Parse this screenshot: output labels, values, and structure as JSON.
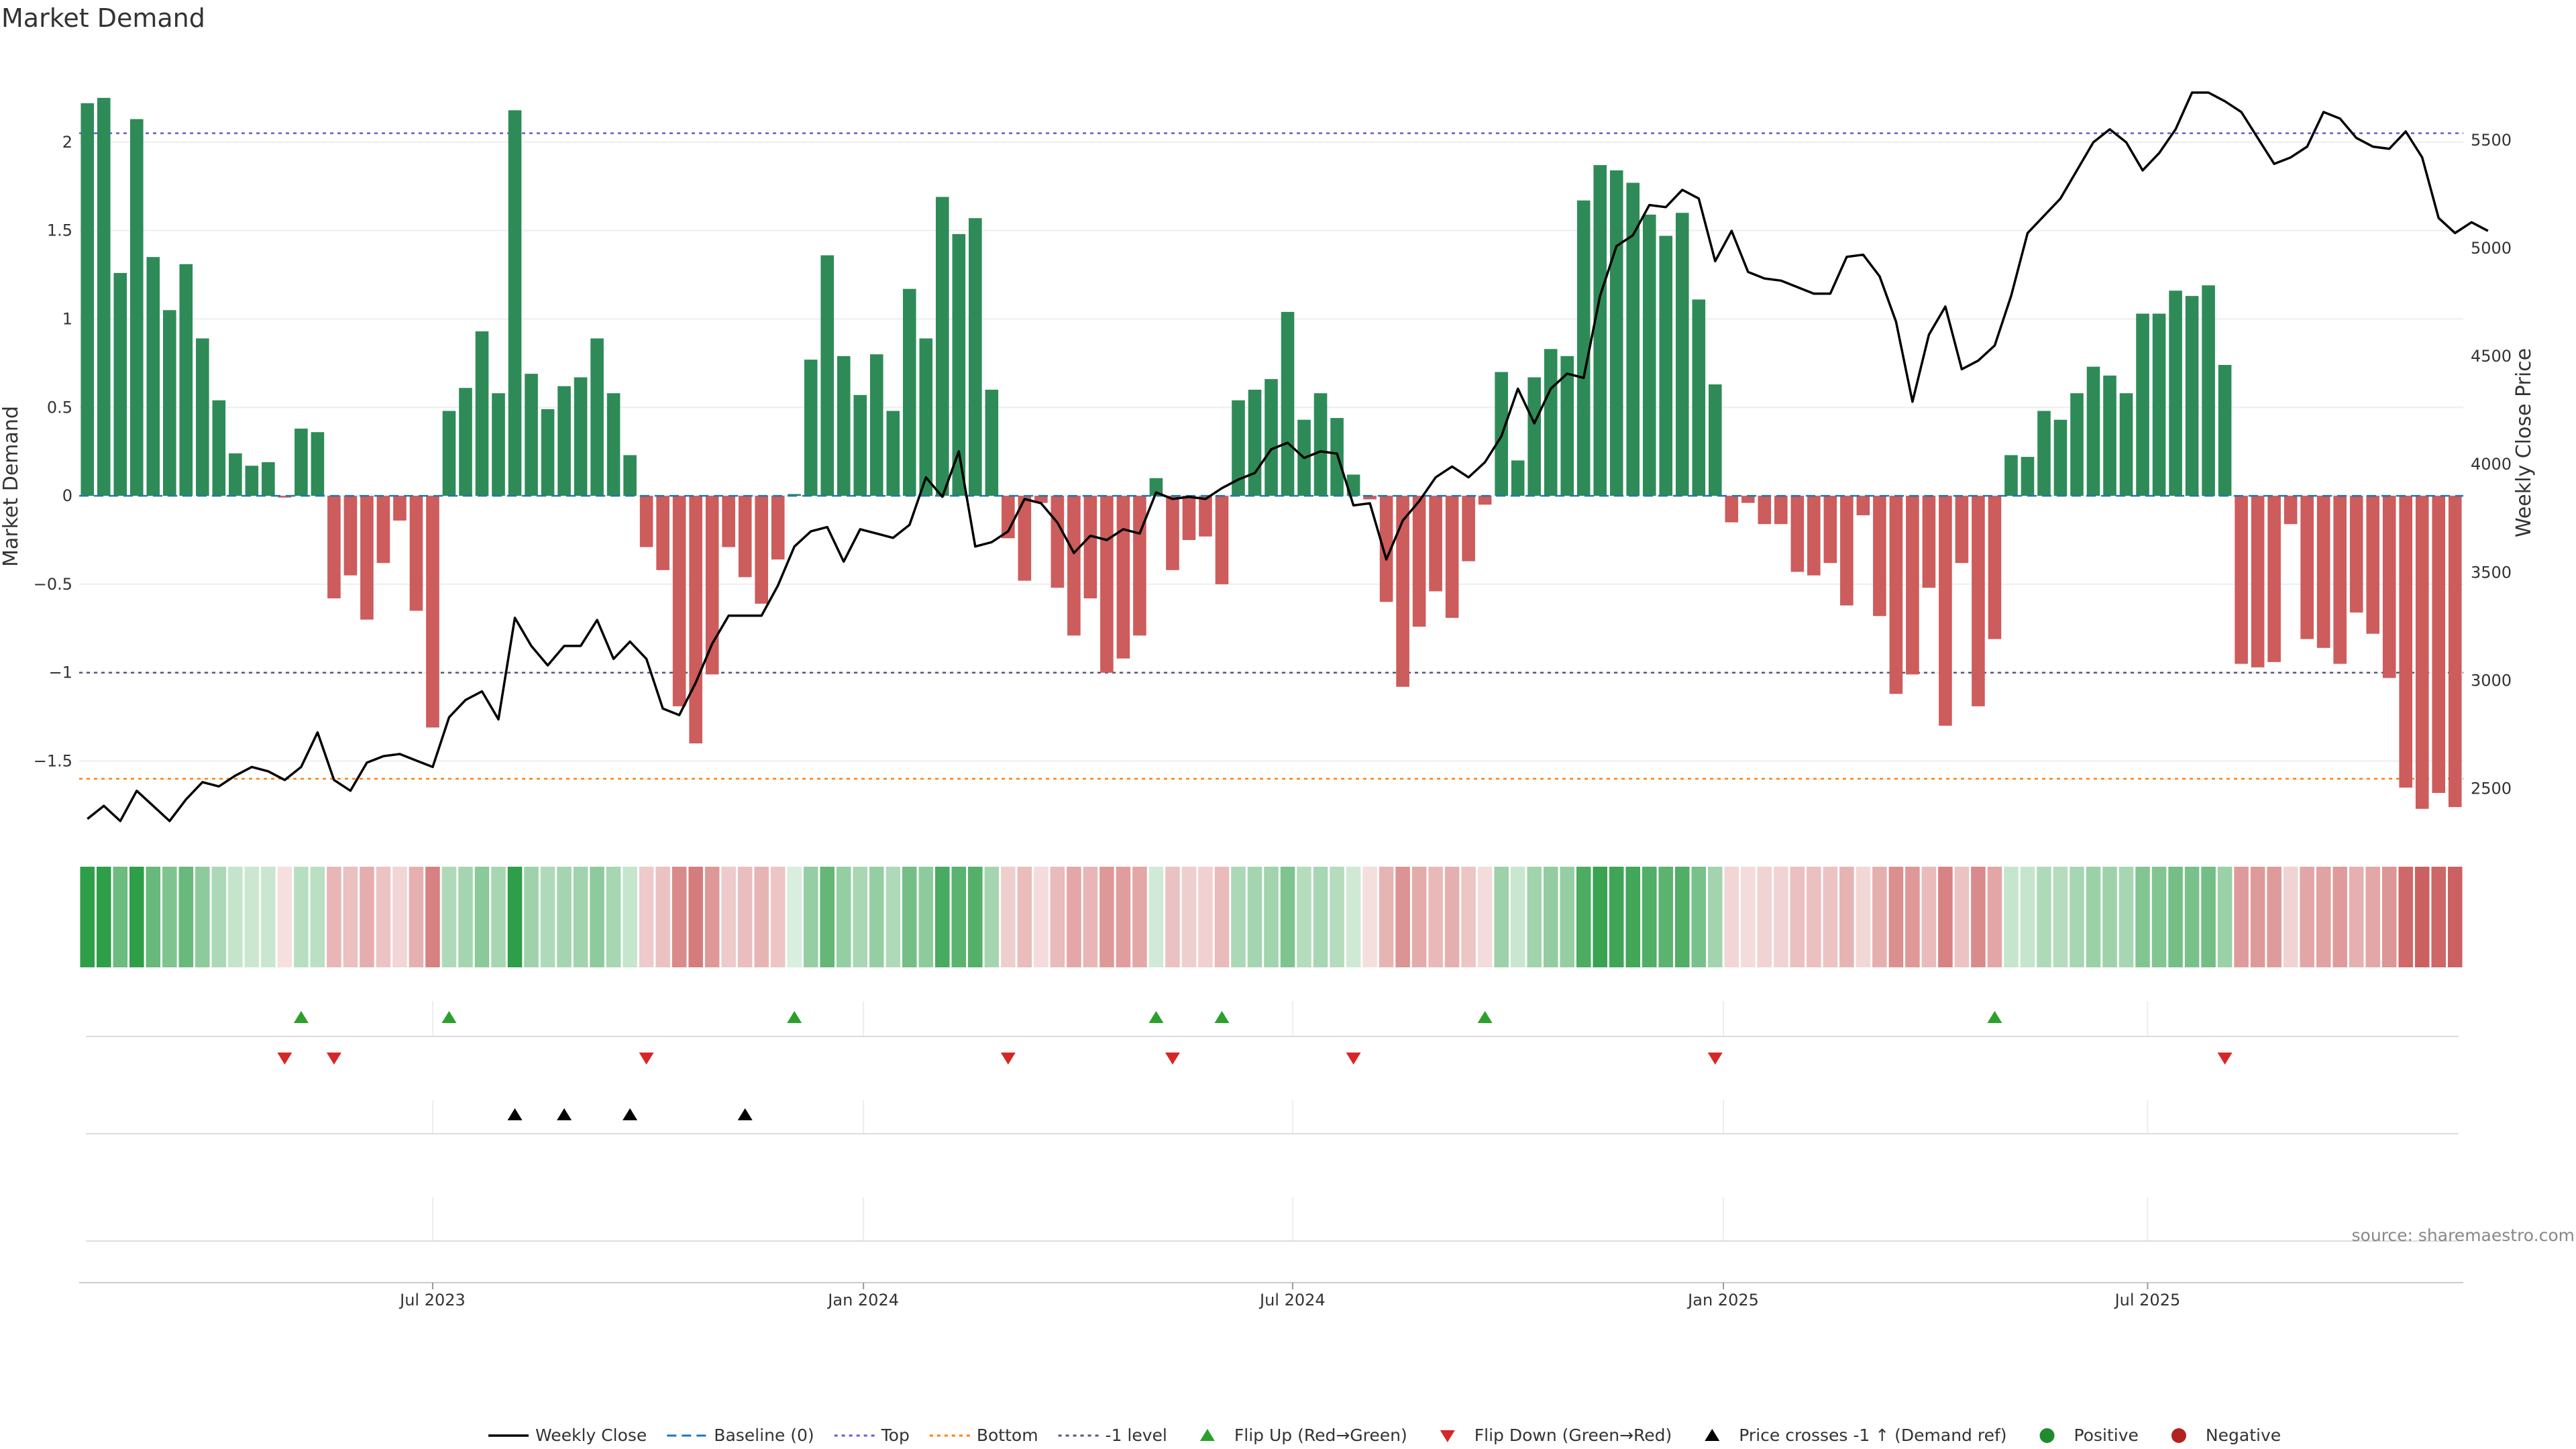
{
  "title": "Market Demand",
  "source": "source: sharemaestro.com",
  "colors": {
    "positive": "#2e8b57",
    "negative": "#cd5c5c",
    "price": "#000000",
    "baseline": "#1f77b4",
    "top": "#6a5acd",
    "bottom": "#ff7f0e",
    "minus_one": "#555577",
    "flip_up": "#2ca02c",
    "flip_down": "#d62728",
    "cross": "#000000",
    "heat_pos": "#2e9e48",
    "heat_neg": "#c75050"
  },
  "chart_data": {
    "type": "bar",
    "title": "Market Demand",
    "ylabel_left": "Market Demand",
    "ylabel_right": "Weekly Close Price",
    "ylim_left": [
      -1.9,
      2.5
    ],
    "ylim_right": [
      2300,
      5900
    ],
    "yticks_left": [
      "2",
      "1.5",
      "1",
      "0.5",
      "0",
      "−0.5",
      "−1",
      "−1.5"
    ],
    "yticks_left_values": [
      2,
      1.5,
      1,
      0.5,
      0,
      -0.5,
      -1,
      -1.5
    ],
    "yticks_right": [
      "5500",
      "5000",
      "4500",
      "4000",
      "3500",
      "3000",
      "2500"
    ],
    "yticks_right_values": [
      5500,
      5000,
      4500,
      4000,
      3500,
      3000,
      2500
    ],
    "x_ticks": [
      {
        "label": "Jul 2023",
        "week": 21.5
      },
      {
        "label": "Jan 2024",
        "week": 47.7
      },
      {
        "label": "Jul 2024",
        "week": 73.8
      },
      {
        "label": "Jan 2025",
        "week": 100
      },
      {
        "label": "Jul 2025",
        "week": 125.8
      }
    ],
    "reference_lines": {
      "baseline": 0,
      "top": 2.05,
      "bottom": -1.6,
      "minus_one_level": -1
    },
    "demand": [
      2.22,
      2.25,
      1.26,
      2.13,
      1.35,
      1.05,
      1.31,
      0.89,
      0.54,
      0.24,
      0.17,
      0.19,
      -0.01,
      0.38,
      0.36,
      -0.58,
      -0.45,
      -0.7,
      -0.38,
      -0.14,
      -0.65,
      -1.31,
      0.48,
      0.61,
      0.93,
      0.58,
      2.18,
      0.69,
      0.49,
      0.62,
      0.67,
      0.89,
      0.58,
      0.23,
      -0.29,
      -0.42,
      -1.19,
      -1.4,
      -1.01,
      -0.29,
      -0.46,
      -0.61,
      -0.36,
      0.01,
      0.77,
      1.36,
      0.79,
      0.57,
      0.8,
      0.48,
      1.17,
      0.89,
      1.69,
      1.48,
      1.57,
      0.6,
      -0.24,
      -0.48,
      -0.04,
      -0.52,
      -0.79,
      -0.58,
      -1.0,
      -0.92,
      -0.79,
      0.1,
      -0.42,
      -0.25,
      -0.23,
      -0.5,
      0.54,
      0.6,
      0.66,
      1.04,
      0.43,
      0.58,
      0.44,
      0.12,
      -0.02,
      -0.6,
      -1.08,
      -0.74,
      -0.54,
      -0.69,
      -0.37,
      -0.05,
      0.7,
      0.2,
      0.67,
      0.83,
      0.79,
      1.67,
      1.87,
      1.84,
      1.77,
      1.59,
      1.47,
      1.6,
      1.11,
      0.63,
      -0.15,
      -0.04,
      -0.16,
      -0.16,
      -0.43,
      -0.45,
      -0.38,
      -0.62,
      -0.11,
      -0.68,
      -1.12,
      -1.01,
      -0.52,
      -1.3,
      -0.38,
      -1.19,
      -0.81,
      0.23,
      0.22,
      0.48,
      0.43,
      0.58,
      0.73,
      0.68,
      0.58,
      1.03,
      1.03,
      1.16,
      1.13,
      1.19,
      0.74,
      -0.95,
      -0.97,
      -0.94,
      -0.16,
      -0.81,
      -0.86,
      -0.95,
      -0.66,
      -0.78,
      -1.03,
      -1.65,
      -1.77,
      -1.68,
      -1.76
    ],
    "weekly_close": [
      2360,
      2420,
      2350,
      2490,
      2420,
      2350,
      2450,
      2530,
      2510,
      2560,
      2600,
      2580,
      2540,
      2600,
      2760,
      2540,
      2490,
      2620,
      2650,
      2660,
      2630,
      2600,
      2830,
      2910,
      2950,
      2820,
      3290,
      3160,
      3070,
      3160,
      3160,
      3280,
      3100,
      3180,
      3100,
      2870,
      2840,
      2990,
      3170,
      3300,
      3300,
      3300,
      3440,
      3620,
      3690,
      3710,
      3550,
      3700,
      3680,
      3660,
      3720,
      3940,
      3850,
      4060,
      3620,
      3640,
      3690,
      3840,
      3820,
      3730,
      3590,
      3670,
      3650,
      3700,
      3680,
      3870,
      3840,
      3850,
      3840,
      3890,
      3930,
      3960,
      4070,
      4100,
      4030,
      4060,
      4050,
      3810,
      3820,
      3560,
      3740,
      3830,
      3940,
      3990,
      3940,
      4010,
      4130,
      4350,
      4190,
      4350,
      4420,
      4400,
      4780,
      5010,
      5060,
      5200,
      5190,
      5270,
      5230,
      4940,
      5080,
      4890,
      4860,
      4850,
      4820,
      4790,
      4790,
      4960,
      4970,
      4870,
      4660,
      4290,
      4600,
      4730,
      4440,
      4480,
      4550,
      4780,
      5070,
      5150,
      5230,
      5360,
      5490,
      5550,
      5490,
      5360,
      5440,
      5550,
      5720,
      5720,
      5680,
      5630,
      5510,
      5390,
      5420,
      5470,
      5630,
      5600,
      5510,
      5470,
      5460,
      5540,
      5420,
      5140,
      5070,
      5120,
      5080
    ],
    "markers": {
      "flip_up_weeks": [
        13,
        22,
        43,
        65,
        69,
        85,
        116
      ],
      "flip_down_weeks": [
        12,
        15,
        34,
        56,
        66,
        77,
        99,
        130
      ],
      "price_cross_weeks": [
        26,
        29,
        33,
        40
      ]
    }
  },
  "legend": [
    {
      "label": "Weekly Close",
      "icon": "solid-line-icon"
    },
    {
      "label": "Baseline (0)",
      "icon": "dashed-line-icon"
    },
    {
      "label": "Top",
      "icon": "dotted-line-icon"
    },
    {
      "label": "Bottom",
      "icon": "dotted-line-icon"
    },
    {
      "label": "-1 level",
      "icon": "dotted-line-icon"
    },
    {
      "label": "Flip Up (Red→Green)",
      "icon": "triangle-up-icon"
    },
    {
      "label": "Flip Down (Green→Red)",
      "icon": "triangle-down-icon"
    },
    {
      "label": "Price crosses -1 ↑ (Demand ref)",
      "icon": "triangle-up-icon"
    },
    {
      "label": "Positive",
      "icon": "circle-icon"
    },
    {
      "label": "Negative",
      "icon": "circle-icon"
    }
  ]
}
